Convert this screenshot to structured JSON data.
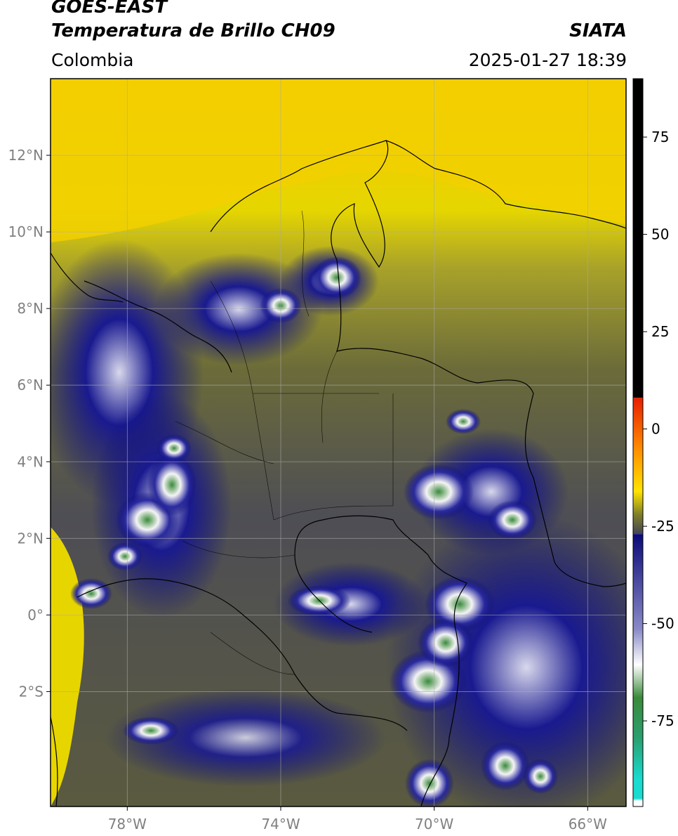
{
  "header": {
    "satellite": "GOES-EAST",
    "product": "Temperatura de Brillo CH09",
    "region": "Colombia",
    "organization": "SIATA",
    "timestamp": "2025-01-27 18:39"
  },
  "map": {
    "lon_range": [
      -80,
      -65
    ],
    "lat_range": [
      -5,
      14
    ],
    "lat_ticks": [
      {
        "value": 12,
        "label": "12°N"
      },
      {
        "value": 10,
        "label": "10°N"
      },
      {
        "value": 8,
        "label": "8°N"
      },
      {
        "value": 6,
        "label": "6°N"
      },
      {
        "value": 4,
        "label": "4°N"
      },
      {
        "value": 2,
        "label": "2°N"
      },
      {
        "value": 0,
        "label": "0°"
      },
      {
        "value": -2,
        "label": "2°S"
      }
    ],
    "lon_ticks": [
      {
        "value": -78,
        "label": "78°W"
      },
      {
        "value": -74,
        "label": "74°W"
      },
      {
        "value": -70,
        "label": "70°W"
      },
      {
        "value": -66,
        "label": "66°W"
      }
    ],
    "gridlines": true
  },
  "colorbar": {
    "range": [
      -97,
      90
    ],
    "ticks": [
      {
        "value": 75,
        "label": "75"
      },
      {
        "value": 50,
        "label": "50"
      },
      {
        "value": 25,
        "label": "25"
      },
      {
        "value": 0,
        "label": "0"
      },
      {
        "value": -25,
        "label": "-25"
      },
      {
        "value": -50,
        "label": "-50"
      },
      {
        "value": -75,
        "label": "-75"
      }
    ],
    "colors": {
      "top": "#000000",
      "red": "#e81e00",
      "orange": "#ff9000",
      "yellow": "#ffe400",
      "olive": "#7f7f2a",
      "gray": "#444455",
      "navy": "#0a0a78",
      "white": "#ffffff",
      "green": "#3a8a3a",
      "cyan": "#18dcd0"
    }
  }
}
